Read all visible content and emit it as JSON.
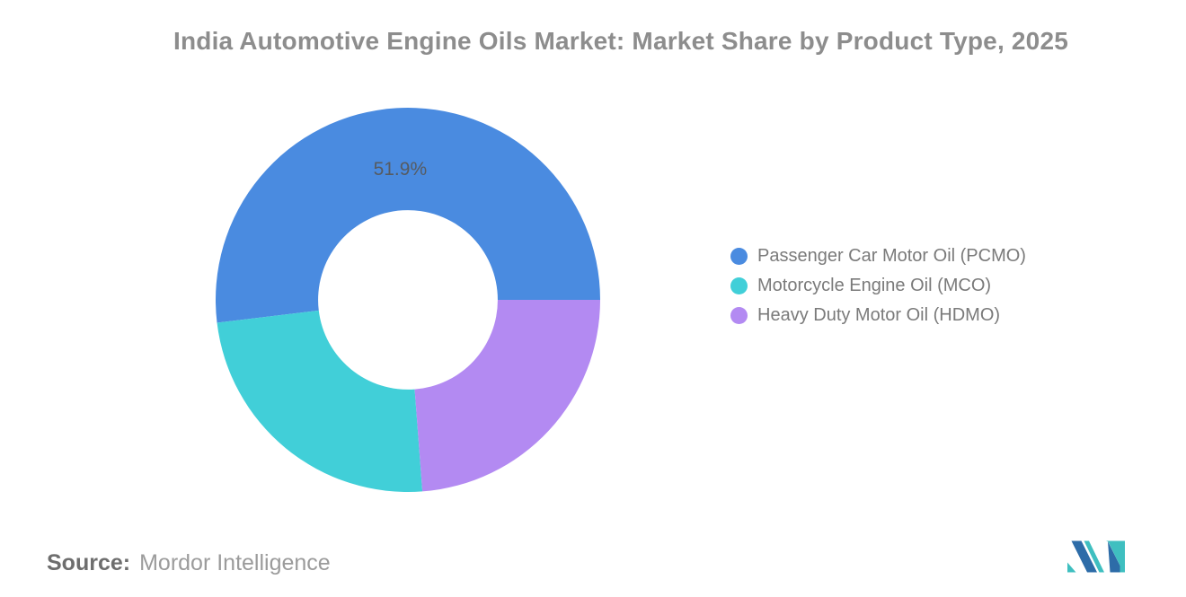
{
  "title": "India Automotive Engine Oils Market: Market Share by Product Type, 2025",
  "source": {
    "label": "Source:",
    "value": "Mordor Intelligence"
  },
  "chart_data": {
    "type": "pie",
    "subtype": "donut",
    "title": "India Automotive Engine Oils Market: Market Share by Product Type, 2025",
    "legend_position": "right",
    "grid": false,
    "start_angle_deg": 90,
    "direction": "counterclockwise",
    "inner_radius_ratio": 0.467,
    "slices": [
      {
        "key": "pcmo",
        "label": "Passenger Car Motor Oil (PCMO)",
        "value": 51.9,
        "data_label": "51.9%",
        "color": "#4a8be0"
      },
      {
        "key": "mco",
        "label": "Motorcycle Engine Oil (MCO)",
        "value": 24.3,
        "data_label": "",
        "color": "#41cfd8"
      },
      {
        "key": "hdmo",
        "label": "Heavy Duty Motor Oil (HDMO)",
        "value": 23.8,
        "data_label": "",
        "color": "#b38af2"
      }
    ]
  },
  "logo": {
    "name": "mordor-intelligence-logo",
    "colors": {
      "blue": "#2d6ca8",
      "teal": "#3fbfc0"
    }
  }
}
